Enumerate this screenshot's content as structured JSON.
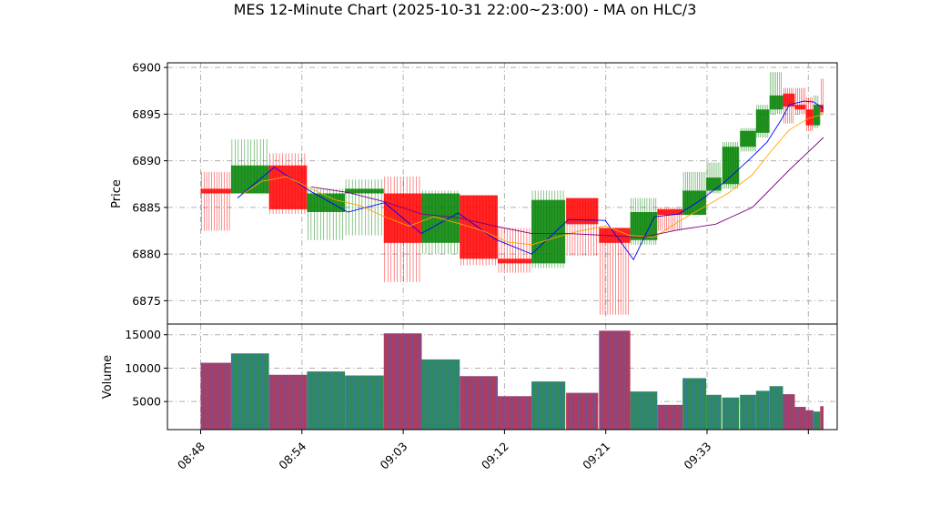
{
  "chart_data": {
    "type": "candlestick",
    "title": "MES 12-Minute Chart (2025-10-31 22:00~23:00) - MA on HLC/3",
    "price_panel": {
      "ylabel": "Price",
      "ylim": [
        6872.5,
        6900.5
      ],
      "yticks": [
        6875,
        6880,
        6885,
        6890,
        6895,
        6900
      ],
      "grid": true
    },
    "volume_panel": {
      "ylabel": "Volume",
      "ylim": [
        800,
        16600
      ],
      "yticks": [
        5000,
        10000,
        15000
      ],
      "grid": true
    },
    "x_ticks": [
      {
        "i": 0,
        "label": "08:48"
      },
      {
        "i": 6,
        "label": "08:54"
      },
      {
        "i": 12,
        "label": "09:03"
      },
      {
        "i": 18,
        "label": "09:12"
      },
      {
        "i": 24,
        "label": "09:21"
      },
      {
        "i": 30,
        "label": "09:33"
      },
      {
        "i": 36,
        "label": ""
      }
    ],
    "bars": [
      {
        "o": 6887.0,
        "h": 6888.8,
        "l": 6882.5,
        "c": 6886.5,
        "v": 10800
      },
      {
        "o": 6886.5,
        "h": 6892.3,
        "l": 6886.5,
        "c": 6889.5,
        "v": 12200
      },
      {
        "o": 6889.5,
        "h": 6890.8,
        "l": 6884.3,
        "c": 6884.8,
        "v": 9000
      },
      {
        "o": 6884.5,
        "h": 6887.0,
        "l": 6881.5,
        "c": 6886.5,
        "v": 9500
      },
      {
        "o": 6886.5,
        "h": 6888.0,
        "l": 6882.0,
        "c": 6887.0,
        "v": 8900
      },
      {
        "o": 6886.5,
        "h": 6888.3,
        "l": 6877.0,
        "c": 6881.2,
        "v": 15200
      },
      {
        "o": 6881.2,
        "h": 6886.8,
        "l": 6880.0,
        "c": 6886.5,
        "v": 11300
      },
      {
        "o": 6886.3,
        "h": 6886.3,
        "l": 6878.8,
        "c": 6879.5,
        "v": 8800
      },
      {
        "o": 6879.5,
        "h": 6882.8,
        "l": 6878.0,
        "c": 6879.0,
        "v": 5800
      },
      {
        "o": 6879.0,
        "h": 6886.8,
        "l": 6878.5,
        "c": 6885.8,
        "v": 8000
      },
      {
        "o": 6886.0,
        "h": 6886.0,
        "l": 6879.8,
        "c": 6883.2,
        "v": 6300
      },
      {
        "o": 6882.8,
        "h": 6882.8,
        "l": 6873.5,
        "c": 6881.2,
        "v": 15600
      },
      {
        "o": 6881.5,
        "h": 6886.0,
        "l": 6881.0,
        "c": 6884.5,
        "v": 6500
      },
      {
        "o": 6884.8,
        "h": 6885.0,
        "l": 6882.5,
        "c": 6884.2,
        "v": 4500
      },
      {
        "o": 6884.2,
        "h": 6888.8,
        "l": 6884.2,
        "c": 6886.8,
        "v": 8500
      },
      {
        "o": 6886.8,
        "h": 6889.8,
        "l": 6886.5,
        "c": 6888.2,
        "v": 6000
      },
      {
        "o": 6887.5,
        "h": 6892.0,
        "l": 6887.0,
        "c": 6891.5,
        "v": 5600
      },
      {
        "o": 6891.5,
        "h": 6893.5,
        "l": 6891.0,
        "c": 6893.2,
        "v": 6000
      },
      {
        "o": 6893.0,
        "h": 6896.0,
        "l": 6892.5,
        "c": 6895.5,
        "v": 6600
      },
      {
        "o": 6895.5,
        "h": 6899.5,
        "l": 6895.0,
        "c": 6897.0,
        "v": 7300
      },
      {
        "o": 6897.2,
        "h": 6897.8,
        "l": 6894.0,
        "c": 6895.8,
        "v": 6100
      },
      {
        "o": 6896.0,
        "h": 6897.8,
        "l": 6895.0,
        "c": 6895.5,
        "v": 4200
      },
      {
        "o": 6895.5,
        "h": 6896.8,
        "l": 6893.2,
        "c": 6893.8,
        "v": 3700
      },
      {
        "o": 6893.8,
        "h": 6897.0,
        "l": 6893.5,
        "c": 6896.0,
        "v": 3500
      },
      {
        "o": 6896.0,
        "h": 6898.8,
        "l": 6895.0,
        "c": 6895.2,
        "v": 4300
      }
    ],
    "moving_averages": [
      {
        "color": "#0000ff",
        "points": [
          [
            3.0,
            6886.0
          ],
          [
            6.0,
            6889.3
          ],
          [
            9.0,
            6886.7
          ],
          [
            12.0,
            6884.5
          ],
          [
            15.0,
            6885.5
          ],
          [
            18.0,
            6882.2
          ],
          [
            21.0,
            6884.4
          ],
          [
            24.0,
            6881.6
          ],
          [
            27.0,
            6880.0
          ],
          [
            30.0,
            6883.7
          ],
          [
            33.0,
            6883.6
          ],
          [
            35.3,
            6879.4
          ],
          [
            37.0,
            6884.0
          ],
          [
            39.0,
            6884.3
          ],
          [
            40.8,
            6885.8
          ],
          [
            42.8,
            6887.8
          ],
          [
            44.8,
            6890.2
          ],
          [
            46.2,
            6892.0
          ],
          [
            47.4,
            6894.5
          ],
          [
            48.0,
            6896.0
          ],
          [
            49.2,
            6896.4
          ],
          [
            50.0,
            6896.3
          ],
          [
            50.8,
            6895.6
          ]
        ]
      },
      {
        "color": "#ffa500",
        "points": [
          [
            3.5,
            6886.5
          ],
          [
            5.0,
            6887.8
          ],
          [
            7.0,
            6888.3
          ],
          [
            9.0,
            6887.0
          ],
          [
            11.0,
            6885.8
          ],
          [
            13.0,
            6885.2
          ],
          [
            15.0,
            6884.0
          ],
          [
            17.0,
            6883.0
          ],
          [
            19.0,
            6884.0
          ],
          [
            21.0,
            6883.3
          ],
          [
            23.0,
            6882.5
          ],
          [
            25.0,
            6881.3
          ],
          [
            27.0,
            6881.0
          ],
          [
            29.0,
            6881.8
          ],
          [
            31.0,
            6882.5
          ],
          [
            33.0,
            6883.0
          ],
          [
            35.0,
            6882.0
          ],
          [
            37.0,
            6881.8
          ],
          [
            39.0,
            6883.5
          ],
          [
            41.0,
            6885.0
          ],
          [
            43.0,
            6886.5
          ],
          [
            45.0,
            6888.5
          ],
          [
            46.5,
            6891.0
          ],
          [
            48.0,
            6893.3
          ],
          [
            49.5,
            6894.5
          ],
          [
            50.8,
            6895.0
          ]
        ]
      },
      {
        "color": "#800080",
        "points": [
          [
            9.0,
            6887.2
          ],
          [
            12.0,
            6886.6
          ],
          [
            15.0,
            6885.6
          ],
          [
            18.0,
            6884.3
          ],
          [
            21.0,
            6883.9
          ],
          [
            24.0,
            6883.0
          ],
          [
            27.0,
            6882.2
          ],
          [
            30.0,
            6882.2
          ],
          [
            33.0,
            6882.0
          ],
          [
            36.0,
            6881.8
          ],
          [
            39.0,
            6882.6
          ],
          [
            42.0,
            6883.2
          ],
          [
            45.0,
            6885.0
          ],
          [
            48.0,
            6889.0
          ],
          [
            50.8,
            6892.5
          ]
        ]
      }
    ]
  }
}
